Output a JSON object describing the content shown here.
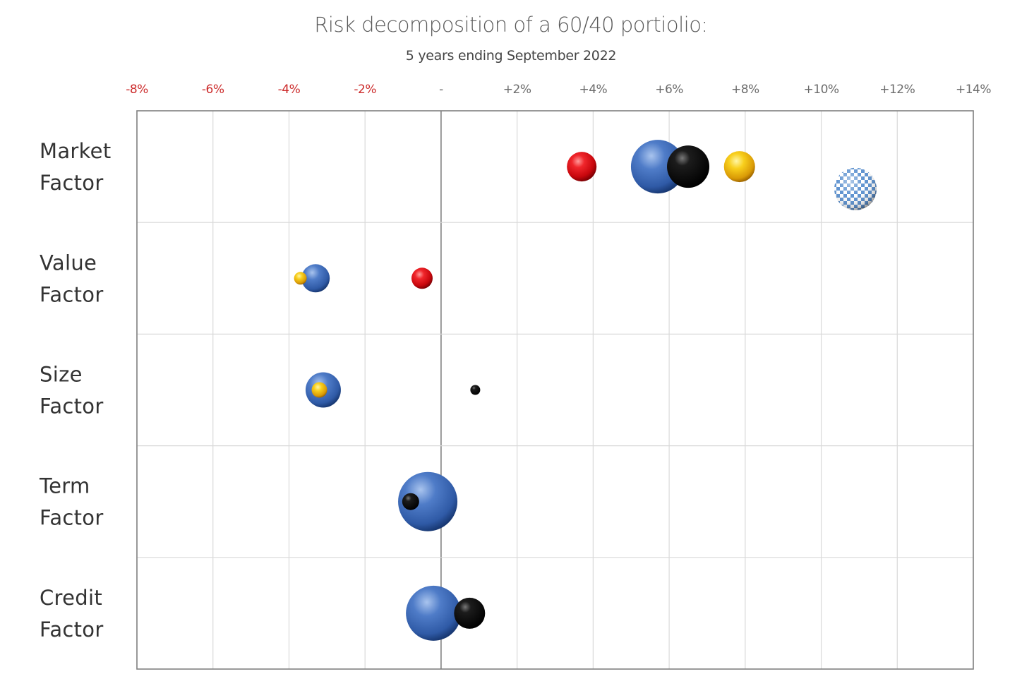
{
  "chart_data": {
    "type": "scatter",
    "title": "Risk decomposition of a 60/40 portiolio:",
    "subtitle": "5 years ending September 2022",
    "xlim": [
      -8,
      14
    ],
    "x_ticks": [
      -8,
      -6,
      -4,
      -2,
      0,
      2,
      4,
      6,
      8,
      10,
      12,
      14
    ],
    "x_tick_labels": [
      "-8%",
      "-6%",
      "-4%",
      "-2%",
      "-",
      "+2%",
      "+4%",
      "+6%",
      "+8%",
      "+10%",
      "+12%",
      "+14%"
    ],
    "rows": [
      {
        "label": [
          "Market",
          "Factor"
        ]
      },
      {
        "label": [
          "Value",
          "Factor"
        ]
      },
      {
        "label": [
          "Size",
          "Factor"
        ]
      },
      {
        "label": [
          "Term",
          "Factor"
        ]
      },
      {
        "label": [
          "Credit",
          "Factor"
        ]
      }
    ],
    "grid": true,
    "series": [
      {
        "style": "red",
        "points": [
          {
            "row": 0,
            "x": 3.7,
            "size": 2.1
          },
          {
            "row": 1,
            "x": -0.5,
            "size": 1.5
          }
        ]
      },
      {
        "style": "blue",
        "points": [
          {
            "row": 0,
            "x": 5.7,
            "size": 3.8
          },
          {
            "row": 1,
            "x": -3.3,
            "size": 2.0
          },
          {
            "row": 2,
            "x": -3.1,
            "size": 2.5
          },
          {
            "row": 3,
            "x": -0.35,
            "size": 4.2
          },
          {
            "row": 4,
            "x": -0.2,
            "size": 3.9
          }
        ]
      },
      {
        "style": "black",
        "points": [
          {
            "row": 0,
            "x": 6.5,
            "size": 3.0
          },
          {
            "row": 2,
            "x": 0.9,
            "size": 0.7
          },
          {
            "row": 3,
            "x": -0.8,
            "size": 1.2
          },
          {
            "row": 4,
            "x": 0.75,
            "size": 2.2
          }
        ]
      },
      {
        "style": "gold",
        "points": [
          {
            "row": 0,
            "x": 7.85,
            "size": 2.2
          },
          {
            "row": 1,
            "x": -3.7,
            "size": 0.9
          },
          {
            "row": 2,
            "x": -3.2,
            "size": 1.1
          }
        ]
      },
      {
        "style": "checkered",
        "points": [
          {
            "row": 0,
            "x": 10.9,
            "size": 3.0,
            "offset": 0.2
          }
        ]
      }
    ],
    "colors": {
      "negative_tick": "#cc2a2a",
      "positive_tick": "#6b6b6b",
      "grid": "#d9d9d9",
      "frame": "#808080",
      "red": "#e0141a",
      "blue": "#4a78c4",
      "black": "#111111",
      "gold": "#f2c21b",
      "checkered": "#6a9ad4"
    }
  }
}
